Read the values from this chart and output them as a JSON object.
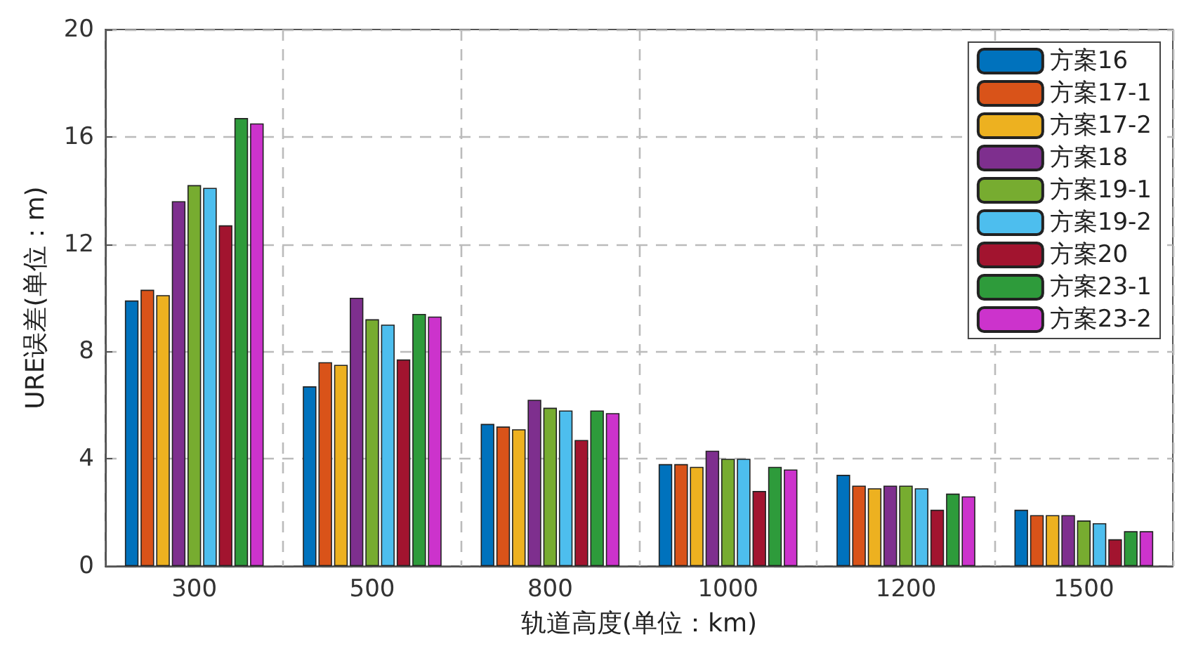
{
  "chart_data": {
    "type": "bar",
    "xlabel": "轨道高度(单位：km)",
    "ylabel": "URE误差(单位：m)",
    "categories": [
      "300",
      "500",
      "800",
      "1000",
      "1200",
      "1500"
    ],
    "series": [
      {
        "name": "方案16",
        "color": "#0072bd",
        "values": [
          9.9,
          6.7,
          5.3,
          3.8,
          3.4,
          2.1
        ]
      },
      {
        "name": "方案17-1",
        "color": "#d95319",
        "values": [
          10.3,
          7.6,
          5.2,
          3.8,
          3.0,
          1.9
        ]
      },
      {
        "name": "方案17-2",
        "color": "#edb120",
        "values": [
          10.1,
          7.5,
          5.1,
          3.7,
          2.9,
          1.9
        ]
      },
      {
        "name": "方案18",
        "color": "#7e2f8e",
        "values": [
          13.6,
          10.0,
          6.2,
          4.3,
          3.0,
          1.9
        ]
      },
      {
        "name": "方案19-1",
        "color": "#77ac30",
        "values": [
          14.2,
          9.2,
          5.9,
          4.0,
          3.0,
          1.7
        ]
      },
      {
        "name": "方案19-2",
        "color": "#4dbeee",
        "values": [
          14.1,
          9.0,
          5.8,
          4.0,
          2.9,
          1.6
        ]
      },
      {
        "name": "方案20",
        "color": "#a2142f",
        "values": [
          12.7,
          7.7,
          4.7,
          2.8,
          2.1,
          1.0
        ]
      },
      {
        "name": "方案23-1",
        "color": "#2e9b3b",
        "values": [
          16.7,
          9.4,
          5.8,
          3.7,
          2.7,
          1.3
        ]
      },
      {
        "name": "方案23-2",
        "color": "#cc33cc",
        "values": [
          16.5,
          9.3,
          5.7,
          3.6,
          2.6,
          1.3
        ]
      }
    ],
    "ylim": [
      0,
      20
    ],
    "yticks": [
      0,
      4,
      8,
      12,
      16,
      20
    ],
    "grid": true,
    "legend": "top right"
  }
}
